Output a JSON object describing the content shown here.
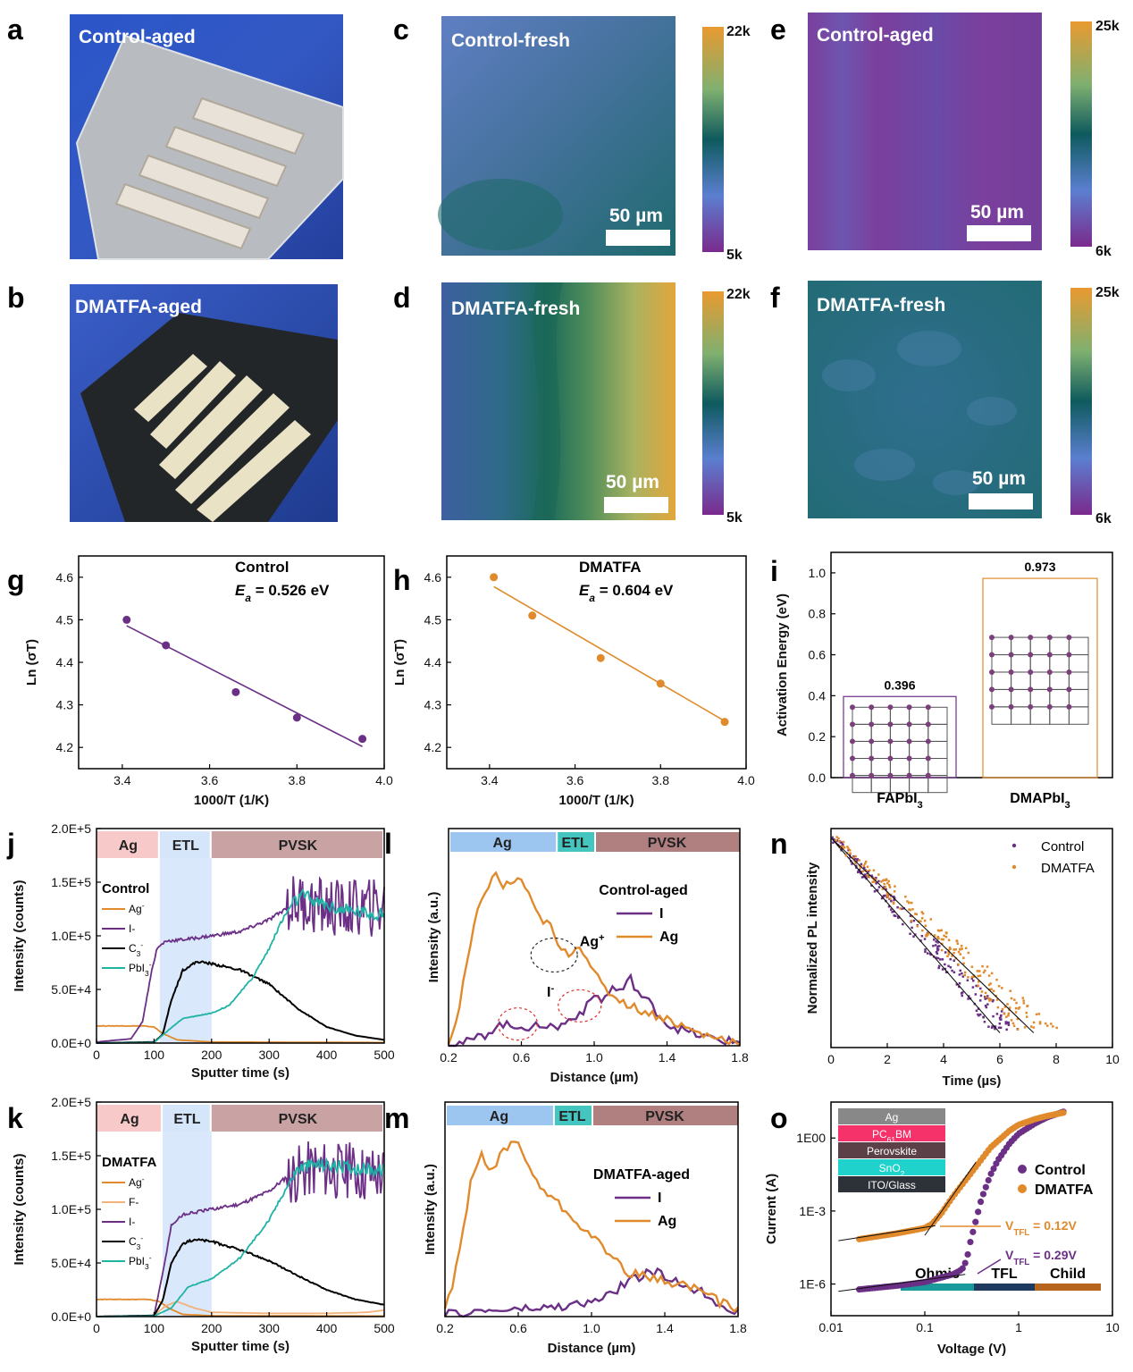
{
  "panel_letters": [
    "a",
    "b",
    "c",
    "d",
    "e",
    "f",
    "g",
    "h",
    "i",
    "j",
    "k",
    "l",
    "m",
    "n",
    "o"
  ],
  "photos": {
    "a": {
      "label": "Control-aged"
    },
    "b": {
      "label": "DMATFA-aged"
    }
  },
  "maps": {
    "c": {
      "label": "Control-fresh",
      "scale": "50 µm",
      "cmax": "22k",
      "cmin": "5k"
    },
    "d": {
      "label": "DMATFA-fresh",
      "scale": "50 µm",
      "cmax": "22k",
      "cmin": "5k"
    },
    "e": {
      "label": "Control-aged",
      "scale": "50 µm",
      "cmax": "25k",
      "cmin": "6k"
    },
    "f": {
      "label": "DMATFA-fresh",
      "scale": "50 µm",
      "cmax": "25k",
      "cmin": "6k"
    }
  },
  "colors": {
    "purple": "#6b2f86",
    "orange": "#e08a2c",
    "black": "#000000",
    "teal": "#1fb3a6",
    "lightorange": "#f2b27a",
    "ag_band": "#f7c9c9",
    "etl_band": "#d5e6fa",
    "pvsk_band": "#c9a3a3"
  },
  "chart_data": [
    {
      "panel": "g",
      "type": "scatter",
      "xlabel": "1000/T (1/K)",
      "ylabel": "Ln (σT)",
      "xlim": [
        3.3,
        4.0
      ],
      "ylim": [
        4.15,
        4.65
      ],
      "xticks": [
        "3.4",
        "3.6",
        "3.8",
        "4.0"
      ],
      "yticks": [
        "4.2",
        "4.3",
        "4.4",
        "4.5",
        "4.6"
      ],
      "annotation": {
        "name": "Control",
        "ea_sym": "E",
        "ea_sub": "a",
        "ea_val": " = 0.526 eV"
      },
      "points": [
        [
          3.41,
          4.5
        ],
        [
          3.5,
          4.44
        ],
        [
          3.66,
          4.33
        ],
        [
          3.8,
          4.27
        ],
        [
          3.95,
          4.22
        ]
      ],
      "fit": [
        [
          3.41,
          4.486
        ],
        [
          3.95,
          4.202
        ]
      ]
    },
    {
      "panel": "h",
      "type": "scatter",
      "xlabel": "1000/T (1/K)",
      "ylabel": "Ln (σT)",
      "xlim": [
        3.3,
        4.0
      ],
      "ylim": [
        4.15,
        4.65
      ],
      "xticks": [
        "3.4",
        "3.6",
        "3.8",
        "4.0"
      ],
      "yticks": [
        "4.2",
        "4.3",
        "4.4",
        "4.5",
        "4.6"
      ],
      "annotation": {
        "name": "DMATFA",
        "ea_sym": "E",
        "ea_sub": "a",
        "ea_val": " = 0.604 eV"
      },
      "points": [
        [
          3.41,
          4.6
        ],
        [
          3.5,
          4.51
        ],
        [
          3.66,
          4.41
        ],
        [
          3.8,
          4.35
        ],
        [
          3.95,
          4.26
        ]
      ],
      "fit": [
        [
          3.41,
          4.578
        ],
        [
          3.95,
          4.262
        ]
      ]
    },
    {
      "panel": "i",
      "type": "bar",
      "ylabel": "Activation Energy (eV)",
      "ylim": [
        0,
        1.1
      ],
      "yticks": [
        "0.0",
        "0.2",
        "0.4",
        "0.6",
        "0.8",
        "1.0"
      ],
      "categories": [
        {
          "main": "FAPbI",
          "sub": "3"
        },
        {
          "main": "DMAPbI",
          "sub": "3"
        }
      ],
      "values": [
        0.396,
        0.973
      ],
      "value_labels": [
        "0.396",
        "0.973"
      ]
    },
    {
      "panel": "j",
      "type": "line",
      "xlabel": "Sputter time (s)",
      "ylabel": "Intensity (counts)",
      "xlim": [
        0,
        500
      ],
      "ylim": [
        0,
        200000
      ],
      "xticks": [
        "0",
        "100",
        "200",
        "300",
        "400",
        "500"
      ],
      "yticks": [
        "0.0E+0",
        "5.0E+4",
        "1.0E+5",
        "1.5E+5",
        "2.0E+5"
      ],
      "regions": [
        {
          "name": "Ag",
          "from": 0,
          "to": 110
        },
        {
          "name": "ETL",
          "from": 110,
          "to": 200
        },
        {
          "name": "PVSK",
          "from": 200,
          "to": 500
        }
      ],
      "legend_title": "Control",
      "series": [
        {
          "name": "Ag",
          "sup": "-",
          "color": "orange",
          "x": [
            0,
            80,
            100,
            115,
            140,
            200,
            500
          ],
          "y": [
            16000,
            16000,
            15000,
            9000,
            3000,
            1000,
            500
          ]
        },
        {
          "name": "I-",
          "color": "purple",
          "x": [
            0,
            60,
            80,
            95,
            105,
            120,
            160,
            200,
            250,
            300,
            320,
            340,
            360,
            380,
            420,
            460,
            500
          ],
          "y": [
            1000,
            4000,
            20000,
            65000,
            88000,
            95000,
            97000,
            100000,
            104000,
            115000,
            122000,
            130000,
            132000,
            128000,
            125000,
            126000,
            127000
          ]
        },
        {
          "name": "C",
          "sub": "3",
          "sup": "-",
          "color": "black",
          "x": [
            0,
            100,
            115,
            130,
            150,
            175,
            200,
            250,
            300,
            350,
            400,
            450,
            500
          ],
          "y": [
            0,
            1000,
            8000,
            40000,
            68000,
            76000,
            74000,
            68000,
            55000,
            32000,
            15000,
            7000,
            3000
          ]
        },
        {
          "name": "PbI",
          "sub": "3",
          "sup": "-",
          "color": "teal",
          "x": [
            0,
            100,
            125,
            150,
            200,
            230,
            270,
            300,
            320,
            340,
            360,
            380,
            420,
            460,
            500
          ],
          "y": [
            0,
            500,
            12000,
            23000,
            28000,
            35000,
            60000,
            88000,
            112000,
            130000,
            138000,
            132000,
            125000,
            122000,
            120000
          ]
        }
      ]
    },
    {
      "panel": "k",
      "type": "line",
      "xlabel": "Sputter time (s)",
      "ylabel": "Intensity (counts)",
      "xlim": [
        0,
        500
      ],
      "ylim": [
        0,
        200000
      ],
      "xticks": [
        "0",
        "100",
        "200",
        "300",
        "400",
        "500"
      ],
      "yticks": [
        "0.0E+0",
        "5.0E+4",
        "1.0E+5",
        "1.5E+5",
        "2.0E+5"
      ],
      "regions": [
        {
          "name": "Ag",
          "from": 0,
          "to": 115
        },
        {
          "name": "ETL",
          "from": 115,
          "to": 200
        },
        {
          "name": "PVSK",
          "from": 200,
          "to": 500
        }
      ],
      "legend_title": "DMATFA",
      "series": [
        {
          "name": "Ag",
          "sup": "-",
          "color": "orange",
          "x": [
            0,
            90,
            110,
            125,
            150,
            200,
            500
          ],
          "y": [
            16000,
            16000,
            14000,
            8000,
            2000,
            800,
            500
          ]
        },
        {
          "name": "F-",
          "color": "lightorange",
          "x": [
            0,
            100,
            120,
            140,
            170,
            200,
            300,
            400,
            470,
            500
          ],
          "y": [
            0,
            1000,
            10000,
            14000,
            8000,
            4000,
            3000,
            3000,
            4000,
            6000
          ]
        },
        {
          "name": "I-",
          "color": "purple",
          "x": [
            0,
            100,
            115,
            130,
            150,
            200,
            250,
            300,
            330,
            350,
            380,
            420,
            460,
            500
          ],
          "y": [
            0,
            1000,
            40000,
            85000,
            95000,
            100000,
            105000,
            117000,
            130000,
            135000,
            140000,
            137000,
            135000,
            134000
          ]
        },
        {
          "name": "C",
          "sub": "3",
          "sup": "-",
          "color": "black",
          "x": [
            0,
            100,
            115,
            130,
            150,
            170,
            200,
            250,
            300,
            350,
            400,
            450,
            500
          ],
          "y": [
            0,
            1000,
            15000,
            50000,
            68000,
            72000,
            70000,
            62000,
            52000,
            38000,
            25000,
            16000,
            11000
          ]
        },
        {
          "name": "PbI",
          "sub": "3",
          "sup": "-",
          "color": "teal",
          "x": [
            0,
            100,
            130,
            160,
            200,
            250,
            300,
            330,
            350,
            380,
            420,
            460,
            500
          ],
          "y": [
            0,
            500,
            8000,
            28000,
            35000,
            55000,
            90000,
            120000,
            138000,
            142000,
            140000,
            138000,
            136000
          ]
        }
      ]
    },
    {
      "panel": "l",
      "type": "line",
      "xlabel": "Distance (µm)",
      "ylabel": "Intensity (a.u.)",
      "xlim": [
        0.2,
        1.8
      ],
      "ylim": [
        0,
        1
      ],
      "xticks": [
        "0.2",
        "0.6",
        "1.0",
        "1.4",
        "1.8"
      ],
      "regions": [
        {
          "name": "Ag",
          "from": 0.2,
          "to": 0.79
        },
        {
          "name": "ETL",
          "from": 0.79,
          "to": 1.0
        },
        {
          "name": "PVSK",
          "from": 1.0,
          "to": 1.8
        }
      ],
      "legend_title": "Control-aged",
      "annotations": [
        {
          "text": "Ag",
          "sup": "+",
          "x": 0.92,
          "y": 0.55
        },
        {
          "text": "I",
          "sup": "-",
          "x": 0.74,
          "y": 0.27
        }
      ],
      "series": [
        {
          "name": "I",
          "color": "purple",
          "x": [
            0.2,
            0.3,
            0.4,
            0.45,
            0.5,
            0.55,
            0.6,
            0.65,
            0.7,
            0.8,
            0.9,
            0.95,
            1.0,
            1.05,
            1.1,
            1.15,
            1.2,
            1.25,
            1.3,
            1.4,
            1.5,
            1.6,
            1.7,
            1.8
          ],
          "y": [
            0.01,
            0.02,
            0.06,
            0.1,
            0.12,
            0.1,
            0.12,
            0.08,
            0.12,
            0.1,
            0.17,
            0.2,
            0.28,
            0.25,
            0.32,
            0.3,
            0.37,
            0.28,
            0.24,
            0.12,
            0.08,
            0.05,
            0.03,
            0.02
          ]
        },
        {
          "name": "Ag",
          "color": "orange",
          "x": [
            0.2,
            0.25,
            0.3,
            0.35,
            0.4,
            0.45,
            0.5,
            0.55,
            0.6,
            0.65,
            0.7,
            0.75,
            0.8,
            0.85,
            0.9,
            0.95,
            1.0,
            1.05,
            1.1,
            1.2,
            1.3,
            1.4,
            1.5,
            1.6,
            1.7,
            1.8
          ],
          "y": [
            0.02,
            0.15,
            0.45,
            0.7,
            0.85,
            0.95,
            0.88,
            0.9,
            0.92,
            0.8,
            0.7,
            0.68,
            0.55,
            0.5,
            0.55,
            0.52,
            0.4,
            0.32,
            0.28,
            0.22,
            0.18,
            0.15,
            0.1,
            0.06,
            0.04,
            0.02
          ]
        }
      ]
    },
    {
      "panel": "m",
      "type": "line",
      "xlabel": "Distance (µm)",
      "ylabel": "Intensity (a.u.)",
      "xlim": [
        0.2,
        1.8
      ],
      "ylim": [
        0,
        1
      ],
      "xticks": [
        "0.2",
        "0.6",
        "1.0",
        "1.4",
        "1.8"
      ],
      "regions": [
        {
          "name": "Ag",
          "from": 0.2,
          "to": 0.79
        },
        {
          "name": "ETL",
          "from": 0.79,
          "to": 1.0
        },
        {
          "name": "PVSK",
          "from": 1.0,
          "to": 1.8
        }
      ],
      "legend_title": "DMATFA-aged",
      "series": [
        {
          "name": "I",
          "color": "purple",
          "x": [
            0.2,
            0.4,
            0.6,
            0.8,
            1.0,
            1.1,
            1.2,
            1.3,
            1.35,
            1.4,
            1.5,
            1.6,
            1.7,
            1.8
          ],
          "y": [
            0.01,
            0.03,
            0.04,
            0.05,
            0.08,
            0.12,
            0.2,
            0.24,
            0.25,
            0.22,
            0.18,
            0.14,
            0.07,
            0.03
          ]
        },
        {
          "name": "Ag",
          "color": "orange",
          "x": [
            0.2,
            0.25,
            0.3,
            0.35,
            0.4,
            0.45,
            0.5,
            0.55,
            0.6,
            0.65,
            0.7,
            0.8,
            0.9,
            1.0,
            1.1,
            1.2,
            1.3,
            1.4,
            1.5,
            1.6,
            1.7,
            1.8
          ],
          "y": [
            0.03,
            0.2,
            0.5,
            0.8,
            0.9,
            0.8,
            0.9,
            0.97,
            0.98,
            0.85,
            0.75,
            0.65,
            0.55,
            0.45,
            0.35,
            0.25,
            0.22,
            0.2,
            0.18,
            0.15,
            0.08,
            0.04
          ]
        }
      ]
    },
    {
      "panel": "n",
      "type": "scatter",
      "xlabel": "Time (µs)",
      "ylabel": "Normalized PL intensity",
      "xlim": [
        0,
        10
      ],
      "ylim": [
        0,
        1
      ],
      "xticks": [
        "0",
        "2",
        "4",
        "6",
        "8",
        "10"
      ],
      "series": [
        {
          "name": "Control",
          "color": "purple",
          "tau": 2.2,
          "fit_to": 6.0
        },
        {
          "name": "DMATFA",
          "color": "orange",
          "tau": 2.8,
          "fit_to": 7.2
        }
      ]
    },
    {
      "panel": "o",
      "type": "line",
      "xlabel": "Voltage (V)",
      "ylabel": "Current (A)",
      "xscale": "log",
      "yscale": "log",
      "xlim": [
        0.01,
        10
      ],
      "ylim": [
        5e-08,
        30
      ],
      "xticks": [
        "0.01",
        "0.1",
        "1",
        "10"
      ],
      "yticks": [
        "1E-6",
        "1E-3",
        "1E00"
      ],
      "stack": [
        {
          "main": "Ag",
          "color": "#888888"
        },
        {
          "main": "PC",
          "sub": "61",
          "tail": "BM",
          "color": "#f5336a"
        },
        {
          "main": "Perovskite",
          "color": "#5b4048"
        },
        {
          "main": "SnO",
          "sub": "2",
          "color": "#1fd3cc"
        },
        {
          "main": "ITO/Glass",
          "color": "#2d3238"
        }
      ],
      "regions": [
        {
          "name": "Ohmic",
          "color": "#1a9a9a"
        },
        {
          "name": "TFL",
          "color": "#1e3a5f"
        },
        {
          "name": "Child",
          "color": "#b5651d"
        }
      ],
      "vtfl": [
        {
          "sym": "V",
          "sub": "TFL",
          "val": " = 0.12V",
          "color": "orange"
        },
        {
          "sym": "V",
          "sub": "TFL",
          "val": " = 0.29V",
          "color": "purple"
        }
      ],
      "series": [
        {
          "name": "Control",
          "color": "purple",
          "x": [
            0.02,
            0.05,
            0.1,
            0.2,
            0.25,
            0.28,
            0.3,
            0.35,
            0.4,
            0.5,
            0.6,
            0.8,
            1.0,
            1.5,
            2.0,
            3.0
          ],
          "y": [
            6e-07,
            8.5e-07,
            1.2e-06,
            2.5e-06,
            4e-06,
            1e-05,
            4e-05,
            0.0004,
            0.003,
            0.03,
            0.12,
            0.6,
            1.5,
            4,
            7,
            12
          ]
        },
        {
          "name": "DMATFA",
          "color": "orange",
          "x": [
            0.02,
            0.05,
            0.1,
            0.12,
            0.15,
            0.2,
            0.3,
            0.5,
            0.8,
            1.0,
            1.5,
            2.0,
            3.0
          ],
          "y": [
            7e-05,
            0.00012,
            0.0002,
            0.0003,
            0.0008,
            0.004,
            0.03,
            0.4,
            2,
            3.5,
            6,
            8,
            11
          ]
        }
      ]
    }
  ]
}
